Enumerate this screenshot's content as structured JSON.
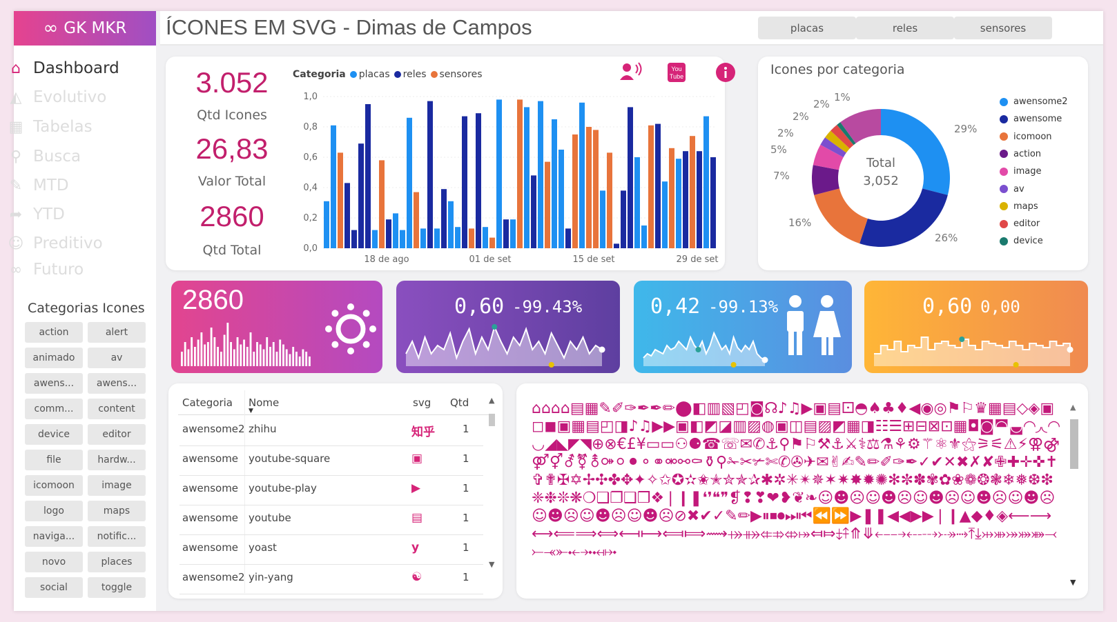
{
  "brand": {
    "logo_icon": "∞",
    "name": "GK MKR",
    "accent": "#d62478",
    "gradient": [
      "#e5438f",
      "#a04fc3"
    ]
  },
  "header": {
    "title": "ÍCONES EM SVG - Dimas de Campos",
    "tabs": [
      "placas",
      "reles",
      "sensores"
    ]
  },
  "sidebar": {
    "items": [
      {
        "label": "Dashboard",
        "icon": "home-icon",
        "glyph": "⌂",
        "active": true
      },
      {
        "label": "Evolutivo",
        "icon": "area-chart-icon",
        "glyph": "◭",
        "active": false
      },
      {
        "label": "Tabelas",
        "icon": "table-icon",
        "glyph": "▦",
        "active": false
      },
      {
        "label": "Busca",
        "icon": "search-icon",
        "glyph": "⚲",
        "active": false
      },
      {
        "label": "MTD",
        "icon": "pin-icon",
        "glyph": "✎",
        "active": false
      },
      {
        "label": "YTD",
        "icon": "share-icon",
        "glyph": "➦",
        "active": false
      },
      {
        "label": "Preditivo",
        "icon": "smile-icon",
        "glyph": "☺",
        "active": false
      },
      {
        "label": "Futuro",
        "icon": "infinity-icon",
        "glyph": "∞",
        "active": false
      }
    ],
    "categories_title": "Categorias Icones",
    "categories": [
      "action",
      "alert",
      "animado",
      "av",
      "awens...",
      "awens...",
      "comm...",
      "content",
      "device",
      "editor",
      "file",
      "hardw...",
      "icomoon",
      "image",
      "logo",
      "maps",
      "naviga...",
      "notific...",
      "novo",
      "places",
      "social",
      "toggle"
    ]
  },
  "kpis": [
    {
      "value": "3.052",
      "label": "Qtd Icones"
    },
    {
      "value": "26,83",
      "label": "Valor Total"
    },
    {
      "value": "2860",
      "label": "Qtd Total"
    }
  ],
  "chart_data": [
    {
      "type": "bar",
      "legend_title": "Categoria",
      "legend_position": "top",
      "series": [
        {
          "name": "placas",
          "color": "#1e90f2"
        },
        {
          "name": "reles",
          "color": "#1a2aa0"
        },
        {
          "name": "sensores",
          "color": "#e8743b"
        }
      ],
      "bars": [
        {
          "s": 0,
          "v": 0.31
        },
        {
          "s": 0,
          "v": 0.81
        },
        {
          "s": 2,
          "v": 0.63
        },
        {
          "s": 1,
          "v": 0.43
        },
        {
          "s": 1,
          "v": 0.12
        },
        {
          "s": 1,
          "v": 0.69
        },
        {
          "s": 1,
          "v": 0.95
        },
        {
          "s": 0,
          "v": 0.12
        },
        {
          "s": 2,
          "v": 0.58
        },
        {
          "s": 1,
          "v": 0.19
        },
        {
          "s": 0,
          "v": 0.23
        },
        {
          "s": 0,
          "v": 0.12
        },
        {
          "s": 0,
          "v": 0.86
        },
        {
          "s": 2,
          "v": 0.37
        },
        {
          "s": 0,
          "v": 0.13
        },
        {
          "s": 1,
          "v": 0.97
        },
        {
          "s": 0,
          "v": 0.13
        },
        {
          "s": 1,
          "v": 0.39
        },
        {
          "s": 0,
          "v": 0.31
        },
        {
          "s": 0,
          "v": 0.14
        },
        {
          "s": 1,
          "v": 0.87
        },
        {
          "s": 2,
          "v": 0.13
        },
        {
          "s": 1,
          "v": 0.89
        },
        {
          "s": 0,
          "v": 0.14
        },
        {
          "s": 2,
          "v": 0.07
        },
        {
          "s": 0,
          "v": 0.98
        },
        {
          "s": 1,
          "v": 0.19
        },
        {
          "s": 0,
          "v": 0.19
        },
        {
          "s": 2,
          "v": 0.98
        },
        {
          "s": 0,
          "v": 0.93
        },
        {
          "s": 1,
          "v": 0.48
        },
        {
          "s": 0,
          "v": 0.97
        },
        {
          "s": 2,
          "v": 0.57
        },
        {
          "s": 0,
          "v": 0.85
        },
        {
          "s": 0,
          "v": 0.65
        },
        {
          "s": 1,
          "v": 0.13
        },
        {
          "s": 2,
          "v": 0.75
        },
        {
          "s": 0,
          "v": 0.96
        },
        {
          "s": 2,
          "v": 0.8
        },
        {
          "s": 2,
          "v": 0.78
        },
        {
          "s": 0,
          "v": 0.38
        },
        {
          "s": 2,
          "v": 0.63
        },
        {
          "s": 1,
          "v": 0.03
        },
        {
          "s": 1,
          "v": 0.38
        },
        {
          "s": 1,
          "v": 0.93
        },
        {
          "s": 0,
          "v": 0.6
        },
        {
          "s": 0,
          "v": 0.15
        },
        {
          "s": 2,
          "v": 0.81
        },
        {
          "s": 1,
          "v": 0.82
        },
        {
          "s": 0,
          "v": 0.44
        },
        {
          "s": 2,
          "v": 0.66
        },
        {
          "s": 0,
          "v": 0.59
        },
        {
          "s": 1,
          "v": 0.64
        },
        {
          "s": 2,
          "v": 0.74
        },
        {
          "s": 1,
          "v": 0.64
        },
        {
          "s": 0,
          "v": 0.87
        },
        {
          "s": 1,
          "v": 0.6
        }
      ],
      "y_ticks": [
        "1,0",
        "0,8",
        "0,6",
        "0,4",
        "0,2",
        "0,0"
      ],
      "ylim": [
        0,
        1
      ],
      "x_ticks": [
        "18 de ago",
        "01 de set",
        "15 de set",
        "29 de set"
      ],
      "grid": true
    },
    {
      "type": "pie",
      "title": "Icones por categoria",
      "center_label": "Total",
      "center_value": "3,052",
      "legend_position": "right",
      "slices": [
        {
          "name": "awensome2",
          "pct": 29,
          "label": "29%",
          "color": "#1e90f2"
        },
        {
          "name": "awensome",
          "pct": 26,
          "label": "26%",
          "color": "#1a2aa0"
        },
        {
          "name": "icomoon",
          "pct": 16,
          "label": "16%",
          "color": "#e8743b"
        },
        {
          "name": "action",
          "pct": 7,
          "label": "7%",
          "color": "#6b1a8a"
        },
        {
          "name": "image",
          "pct": 5,
          "label": "5%",
          "color": "#e24aa8"
        },
        {
          "name": "av",
          "pct": 2,
          "label": "2%",
          "color": "#7b4fcf"
        },
        {
          "name": "maps",
          "pct": 2,
          "label": "2%",
          "color": "#d9b200"
        },
        {
          "name": "editor",
          "pct": 2,
          "label": "2%",
          "color": "#e04848"
        },
        {
          "name": "device",
          "pct": 1,
          "label": "1%",
          "color": "#1a7a6e"
        },
        {
          "name": "",
          "pct": 10,
          "label": "",
          "color": "#b84aa0"
        }
      ]
    }
  ],
  "tiles": [
    {
      "value": "2860",
      "pct": "",
      "icon": "sun-icon",
      "glyph": "☀",
      "colors": [
        "#e2458f",
        "#b44ac0"
      ],
      "spark": [
        0.3,
        0.5,
        0.35,
        0.6,
        0.4,
        0.55,
        0.7,
        0.45,
        0.5,
        0.8,
        0.6,
        0.4,
        0.3,
        0.65,
        0.9,
        0.5,
        0.35,
        0.6,
        0.45,
        0.55,
        0.4,
        0.7,
        0.3,
        0.5,
        0.45,
        0.35,
        0.6,
        0.4,
        0.5,
        0.3,
        0.55,
        0.45,
        0.35,
        0.25,
        0.4,
        0.3,
        0.2,
        0.35,
        0.3,
        0.2
      ],
      "style": "bars"
    },
    {
      "value": "0,60",
      "pct": "-99.43%",
      "icon": "",
      "glyph": "",
      "colors": [
        "#8a4fbf",
        "#5e3fa0"
      ],
      "spark": [
        0.3,
        0.6,
        0.2,
        0.7,
        0.3,
        0.5,
        0.4,
        0.8,
        0.2,
        0.6,
        0.9,
        0.3,
        0.7,
        0.4,
        0.95,
        0.6,
        0.3,
        0.7,
        0.5,
        0.9,
        0.4,
        0.6,
        0.3,
        0.8,
        0.5,
        0.2,
        0.6,
        0.4,
        0.7,
        0.3,
        0.5,
        0.4
      ],
      "style": "area"
    },
    {
      "value": "0,42",
      "pct": "-99.13%",
      "icon": "people-icon",
      "glyph": "👫",
      "colors": [
        "#3fb8ea",
        "#5a8ee0"
      ],
      "spark": [
        0.2,
        0.3,
        0.25,
        0.4,
        0.35,
        0.3,
        0.5,
        0.4,
        0.45,
        0.6,
        0.5,
        0.4,
        0.7,
        0.5,
        0.4,
        0.6,
        0.3,
        0.5,
        0.8,
        0.6,
        0.4,
        0.5,
        0.3,
        0.7,
        0.45,
        0.35,
        0.5,
        0.4,
        0.6,
        0.3,
        0.2,
        0.15
      ],
      "style": "area"
    },
    {
      "value": "0,60",
      "pct": "0,00",
      "icon": "",
      "glyph": "",
      "colors": [
        "#ffb637",
        "#f08a50"
      ],
      "spark": [
        0.3,
        0.5,
        0.4,
        0.6,
        0.35,
        0.5,
        0.45,
        0.7,
        0.4,
        0.55,
        0.6,
        0.5,
        0.45,
        0.65,
        0.5,
        0.4,
        0.6,
        0.55,
        0.5,
        0.45,
        0.6,
        0.5,
        0.4,
        0.55,
        0.5,
        0.45,
        0.6,
        0.5,
        0.55,
        0.4
      ],
      "style": "step"
    }
  ],
  "table": {
    "columns": [
      "Categoria",
      "Nome",
      "svg",
      "Qtd"
    ],
    "rows": [
      {
        "cat": "awensome2",
        "name": "zhihu",
        "svg": "知乎",
        "qtd": "1"
      },
      {
        "cat": "awensome",
        "name": "youtube-square",
        "svg": "▣",
        "qtd": "1"
      },
      {
        "cat": "awensome",
        "name": "youtube-play",
        "svg": "▶",
        "qtd": "1"
      },
      {
        "cat": "awensome",
        "name": "youtube",
        "svg": "▤",
        "qtd": "1"
      },
      {
        "cat": "awensome",
        "name": "yoast",
        "svg": "y",
        "qtd": "1"
      },
      {
        "cat": "awensome2",
        "name": "yin-yang",
        "svg": "☯",
        "qtd": "1"
      }
    ]
  },
  "icon_wall": "⌂⌂⌂⌂▤▦✎✐✑✒✒✏⬤◧▥▧◰◙☊♪♫▶▣▤⚀◓♠♣♦◀◉◎⚑⚐♛▦▤◇◈▣◻◼▣▦▤◰◨♪♫▶▶▣◧◩◪▥▨◍▣◫▤▨◩▦◨☷☰⊞⊟⊠⊡▦◘◙◚◛◜◝◞◟◠◡◢◣◤◥⊕⊗€£¥▭▭⚇⚈☎☏✉✆⚓⚲⚑⚐⚒⚓⚔⚕⚖⚗⚘⚙⚚⚛⚜⚝⚞⚟⚠⚡⚢⚣⚤⚥⚦⚧⚨⚩⚪⚫⚬⚭⚮⚯⚰⚱⚲✁✂✃✄✆✇✈✉✌✍✎✏✐✑✒✓✔✕✖✗✘✙✚✛✜✝✞✟✠✡✢✣✤✥✦✧✩✪✫✬✭✮✯✰✱✲✳✴✵✶✷✸✹✺✻✼✽✾✿❀❁❂❃❄❅❆❇❈❉❊❋❍❏❐❑❒❖❘❙❚❛❜❝❞❡❢❣❤❥❦❧☺☻☹☺☻☹☺☻☹☺☻☹☺☻☹☺☻☹☺☻☹☺☻☹⊘✖✔✓✎✏▶⏸⏹⏺⏭⏮⏪⏩▶❚❚◀◀▶▶❘❙▲◆♦◈⟵⟶⟷⟸⟹⟺⟻⟼⟽⟾⟿⤀⤁⤂⤃⤄⤅⤆⤇⤈⤉⤊⤋⤌⤍⤎⤏⤐⤑⤒⤓⤔⤕⤖⤗⤘⤙⤚⤛⤜⤝⤞⤟⤠"
}
